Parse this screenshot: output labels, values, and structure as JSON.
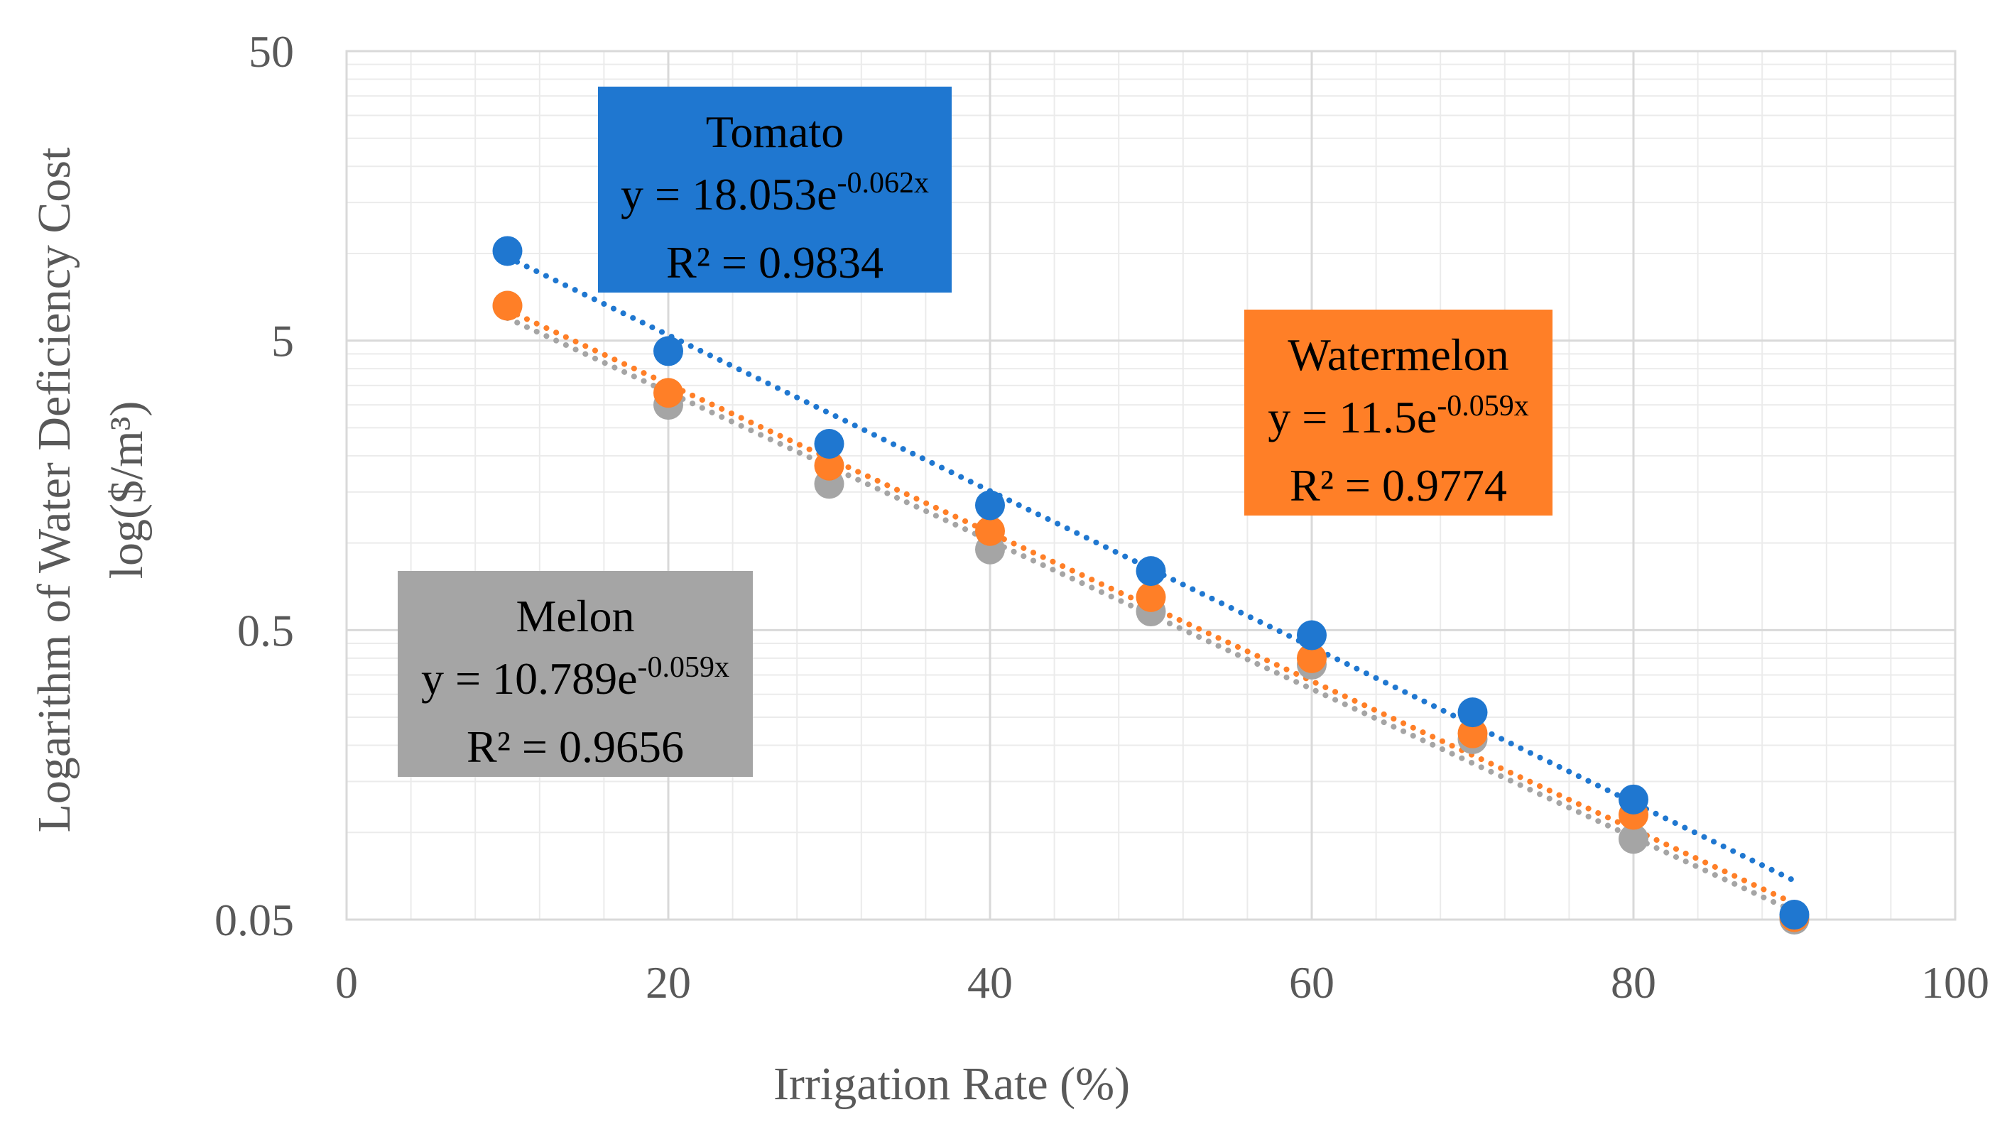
{
  "chart_data": {
    "type": "scatter",
    "title": "",
    "xlabel": "Irrigation Rate (%)",
    "ylabel_line1": "Logarithm of Water Deficiency Cost",
    "ylabel_line2": "log($/m³)",
    "y_scale": "log",
    "xlim": [
      0,
      100
    ],
    "ylim": [
      0.05,
      50
    ],
    "x_ticks": [
      "0",
      "20",
      "40",
      "60",
      "80",
      "100"
    ],
    "y_ticks": [
      "50",
      "5",
      "0.5",
      "0.05"
    ],
    "x": [
      10,
      20,
      30,
      40,
      50,
      60,
      70,
      80,
      90
    ],
    "series": [
      {
        "name": "Tomato",
        "color": "#1F77D0",
        "values": [
          10.2,
          4.6,
          2.2,
          1.35,
          0.8,
          0.48,
          0.26,
          0.13,
          0.052
        ],
        "trend": {
          "a": 18.053,
          "b": -0.062
        },
        "equation_prefix": "y = 18.053e",
        "equation_exp": "-0.062x",
        "r2": "R² = 0.9834"
      },
      {
        "name": "Watermelon",
        "color": "#FF7F27",
        "values": [
          6.6,
          3.3,
          1.85,
          1.1,
          0.65,
          0.4,
          0.22,
          0.115,
          0.051
        ],
        "trend": {
          "a": 11.5,
          "b": -0.059
        },
        "equation_prefix": "y = 11.5e",
        "equation_exp": "-0.059x",
        "r2": "R² = 0.9774"
      },
      {
        "name": "Melon",
        "color": "#A5A5A5",
        "values": [
          6.6,
          3.0,
          1.6,
          0.95,
          0.58,
          0.38,
          0.21,
          0.095,
          0.05
        ],
        "trend": {
          "a": 10.789,
          "b": -0.059
        },
        "equation_prefix": "y = 10.789e",
        "equation_exp": "-0.059x",
        "r2": "R² = 0.9656"
      }
    ]
  }
}
